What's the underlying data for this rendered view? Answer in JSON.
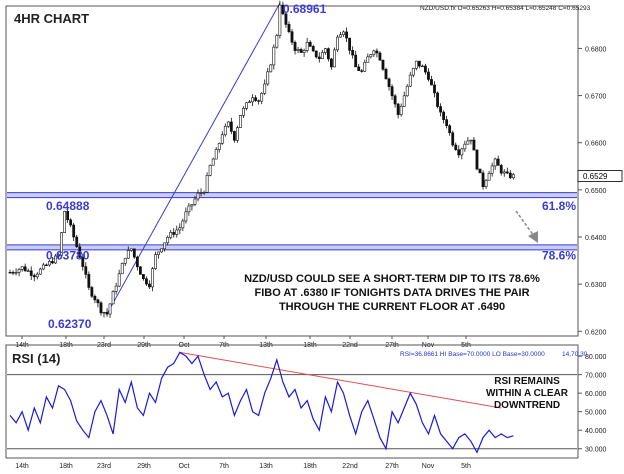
{
  "chart_data": [
    {
      "type": "candlestick",
      "title": "4HR CHART",
      "symbol_info": "NZD/USD.fx O=0.65263 H=0.65384 L=0.65248 C=0.65293",
      "ylim": [
        0.619,
        0.689
      ],
      "yticks": [
        "0.6800",
        "0.6700",
        "0.6600",
        "0.6500",
        "0.6400",
        "0.6300",
        "0.6200"
      ],
      "ytick_values": [
        0.68,
        0.67,
        0.66,
        0.65,
        0.64,
        0.63,
        0.62
      ],
      "xticks": [
        "14th",
        "18th",
        "23rd",
        "29th",
        "Oct",
        "7th",
        "13th",
        "18th",
        "22nd",
        "27th",
        "Nov",
        "5th"
      ],
      "current_price": "0.6529",
      "current_price_value": 0.65293,
      "levels": [
        {
          "price": 0.64888,
          "label": "0.64888",
          "fib_label": "61.8%"
        },
        {
          "price": 0.6378,
          "label": "0.63780",
          "fib_label": "78.6%"
        }
      ],
      "low_label": {
        "price": 0.6237,
        "label": "0.62370"
      },
      "high_label": {
        "price": 0.68961,
        "label": "0.68961"
      },
      "annotation": [
        "NZD/USD COULD SEE A SHORT-TERM DIP TO ITS 78.6%",
        "FIBO AT .6380 IF TONIGHTS DATA DRIVES THE PAIR",
        "THROUGH THE CURRENT FLOOR AT .6490"
      ],
      "price_path": [
        [
          0,
          0.6325
        ],
        [
          4,
          0.6335
        ],
        [
          8,
          0.632
        ],
        [
          12,
          0.634
        ],
        [
          16,
          0.636
        ],
        [
          18,
          0.6455
        ],
        [
          20,
          0.642
        ],
        [
          22,
          0.638
        ],
        [
          24,
          0.634
        ],
        [
          26,
          0.629
        ],
        [
          28,
          0.627
        ],
        [
          30,
          0.6245
        ],
        [
          32,
          0.6237
        ],
        [
          34,
          0.628
        ],
        [
          36,
          0.632
        ],
        [
          38,
          0.636
        ],
        [
          40,
          0.6375
        ],
        [
          42,
          0.634
        ],
        [
          44,
          0.631
        ],
        [
          46,
          0.63
        ],
        [
          48,
          0.636
        ],
        [
          50,
          0.638
        ],
        [
          52,
          0.64
        ],
        [
          54,
          0.641
        ],
        [
          56,
          0.642
        ],
        [
          58,
          0.645
        ],
        [
          60,
          0.647
        ],
        [
          62,
          0.649
        ],
        [
          64,
          0.65
        ],
        [
          66,
          0.655
        ],
        [
          68,
          0.658
        ],
        [
          70,
          0.662
        ],
        [
          72,
          0.664
        ],
        [
          74,
          0.661
        ],
        [
          76,
          0.666
        ],
        [
          78,
          0.668
        ],
        [
          80,
          0.67
        ],
        [
          82,
          0.669
        ],
        [
          84,
          0.672
        ],
        [
          86,
          0.677
        ],
        [
          88,
          0.683
        ],
        [
          89,
          0.6896
        ],
        [
          90,
          0.687
        ],
        [
          92,
          0.683
        ],
        [
          94,
          0.68
        ],
        [
          96,
          0.679
        ],
        [
          98,
          0.681
        ],
        [
          100,
          0.679
        ],
        [
          102,
          0.678
        ],
        [
          104,
          0.68
        ],
        [
          106,
          0.676
        ],
        [
          108,
          0.683
        ],
        [
          110,
          0.684
        ],
        [
          112,
          0.68
        ],
        [
          114,
          0.676
        ],
        [
          116,
          0.675
        ],
        [
          118,
          0.678
        ],
        [
          120,
          0.68
        ],
        [
          122,
          0.678
        ],
        [
          124,
          0.674
        ],
        [
          126,
          0.67
        ],
        [
          128,
          0.666
        ],
        [
          130,
          0.67
        ],
        [
          132,
          0.674
        ],
        [
          134,
          0.677
        ],
        [
          136,
          0.676
        ],
        [
          138,
          0.674
        ],
        [
          140,
          0.67
        ],
        [
          142,
          0.666
        ],
        [
          144,
          0.664
        ],
        [
          146,
          0.66
        ],
        [
          148,
          0.658
        ],
        [
          150,
          0.66
        ],
        [
          152,
          0.661
        ],
        [
          154,
          0.655
        ],
        [
          156,
          0.651
        ],
        [
          158,
          0.654
        ],
        [
          160,
          0.656
        ],
        [
          162,
          0.654
        ],
        [
          164,
          0.653
        ],
        [
          166,
          0.6529
        ]
      ]
    },
    {
      "type": "line",
      "title": "RSI (14)",
      "info": "RSI=36.8661 HI Base=70.0000 LO Base=30.0000",
      "info_right": "14,70,30",
      "ylim": [
        25,
        86
      ],
      "yticks": [
        "80.000",
        "70.000",
        "60.000",
        "50.000",
        "40.000",
        "30.000"
      ],
      "ytick_values": [
        80,
        70,
        60,
        50,
        40,
        30
      ],
      "hi_base": 70,
      "lo_base": 30,
      "annotation": [
        "RSI REMAINS",
        "WITHIN A CLEAR",
        "DOWNTREND"
      ],
      "trendline": [
        [
          56,
          82
        ],
        [
          162,
          52
        ]
      ],
      "series": [
        [
          0,
          48
        ],
        [
          2,
          44
        ],
        [
          4,
          50
        ],
        [
          6,
          40
        ],
        [
          8,
          52
        ],
        [
          10,
          44
        ],
        [
          12,
          58
        ],
        [
          14,
          52
        ],
        [
          16,
          64
        ],
        [
          18,
          62
        ],
        [
          20,
          56
        ],
        [
          22,
          45
        ],
        [
          24,
          40
        ],
        [
          26,
          36
        ],
        [
          28,
          50
        ],
        [
          30,
          56
        ],
        [
          32,
          48
        ],
        [
          34,
          38
        ],
        [
          36,
          62
        ],
        [
          38,
          55
        ],
        [
          40,
          66
        ],
        [
          42,
          52
        ],
        [
          44,
          48
        ],
        [
          46,
          60
        ],
        [
          48,
          55
        ],
        [
          50,
          68
        ],
        [
          52,
          74
        ],
        [
          54,
          76
        ],
        [
          56,
          82
        ],
        [
          58,
          80
        ],
        [
          60,
          76
        ],
        [
          62,
          80
        ],
        [
          64,
          70
        ],
        [
          66,
          62
        ],
        [
          68,
          66
        ],
        [
          70,
          58
        ],
        [
          72,
          60
        ],
        [
          74,
          48
        ],
        [
          76,
          56
        ],
        [
          78,
          62
        ],
        [
          80,
          50
        ],
        [
          82,
          48
        ],
        [
          84,
          60
        ],
        [
          86,
          68
        ],
        [
          88,
          78
        ],
        [
          90,
          66
        ],
        [
          92,
          58
        ],
        [
          94,
          62
        ],
        [
          96,
          52
        ],
        [
          98,
          56
        ],
        [
          100,
          46
        ],
        [
          102,
          40
        ],
        [
          104,
          58
        ],
        [
          106,
          50
        ],
        [
          108,
          66
        ],
        [
          110,
          60
        ],
        [
          112,
          48
        ],
        [
          114,
          38
        ],
        [
          116,
          50
        ],
        [
          118,
          56
        ],
        [
          120,
          46
        ],
        [
          122,
          36
        ],
        [
          124,
          30
        ],
        [
          126,
          50
        ],
        [
          128,
          44
        ],
        [
          130,
          52
        ],
        [
          132,
          60
        ],
        [
          134,
          54
        ],
        [
          136,
          44
        ],
        [
          138,
          38
        ],
        [
          140,
          48
        ],
        [
          142,
          38
        ],
        [
          144,
          34
        ],
        [
          146,
          30
        ],
        [
          148,
          36
        ],
        [
          150,
          38
        ],
        [
          152,
          34
        ],
        [
          154,
          28
        ],
        [
          156,
          36
        ],
        [
          158,
          40
        ],
        [
          160,
          36
        ],
        [
          162,
          38
        ],
        [
          164,
          36
        ],
        [
          166,
          37
        ]
      ]
    }
  ]
}
